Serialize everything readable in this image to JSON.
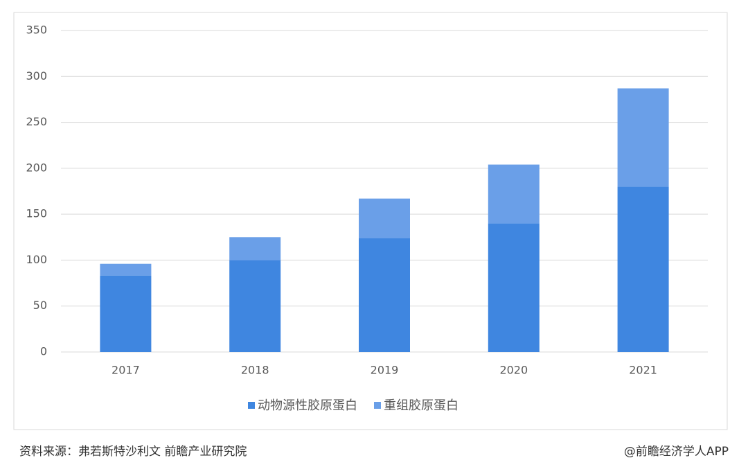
{
  "chart_data": {
    "type": "stacked_bar",
    "categories": [
      "2017",
      "2018",
      "2019",
      "2020",
      "2021"
    ],
    "series": [
      {
        "name": "动物源性胶原蛋白",
        "color": "#3f86e0",
        "values": [
          83,
          100,
          124,
          140,
          180
        ]
      },
      {
        "name": "重组胶原蛋白",
        "color": "#6a9fe8",
        "values": [
          13,
          25,
          43,
          64,
          107
        ]
      }
    ],
    "ylim": [
      0,
      350
    ],
    "yticks": [
      0,
      50,
      100,
      150,
      200,
      250,
      300,
      350
    ],
    "grid": true,
    "legend": "bottom"
  },
  "footer": {
    "source": "资料来源：弗若斯特沙利文 前瞻产业研究院",
    "credit": "@前瞻经济学人APP"
  }
}
